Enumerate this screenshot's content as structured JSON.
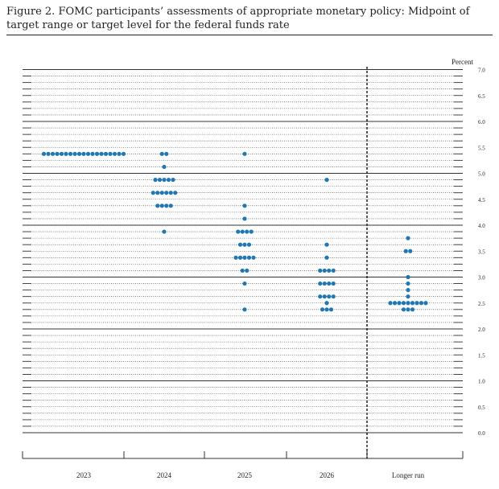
{
  "figure": {
    "title": "Figure 2.  FOMC participants’ assessments of appropriate monetary policy: Midpoint of target range or target level for the federal funds rate"
  },
  "colors": {
    "dot": "#1f77b4",
    "grid": "#333333",
    "text": "#222222"
  },
  "chart_data": {
    "type": "scatter",
    "subtype": "dot-plot",
    "ylabel": "Percent",
    "ylim": [
      0,
      7
    ],
    "yticks": [
      "0.0",
      "0.5",
      "1.0",
      "1.5",
      "2.0",
      "2.5",
      "3.0",
      "3.5",
      "4.0",
      "4.5",
      "5.0",
      "5.5",
      "6.0",
      "6.5",
      "7.0"
    ],
    "gridlines": "solid at whole percents, dotted at eighth-percent steps",
    "categories": [
      "2023",
      "2024",
      "2025",
      "2026",
      "Longer run"
    ],
    "separator_before": "Longer run",
    "columns": [
      {
        "category": "2023",
        "dots": [
          {
            "value": 5.375,
            "count": 19
          }
        ]
      },
      {
        "category": "2024",
        "dots": [
          {
            "value": 5.375,
            "count": 2
          },
          {
            "value": 5.125,
            "count": 1
          },
          {
            "value": 4.875,
            "count": 5
          },
          {
            "value": 4.625,
            "count": 6
          },
          {
            "value": 4.375,
            "count": 4
          },
          {
            "value": 3.875,
            "count": 1
          }
        ]
      },
      {
        "category": "2025",
        "dots": [
          {
            "value": 5.375,
            "count": 1
          },
          {
            "value": 4.375,
            "count": 1
          },
          {
            "value": 4.125,
            "count": 1
          },
          {
            "value": 3.875,
            "count": 4
          },
          {
            "value": 3.625,
            "count": 3
          },
          {
            "value": 3.375,
            "count": 5
          },
          {
            "value": 3.125,
            "count": 2
          },
          {
            "value": 2.875,
            "count": 1
          },
          {
            "value": 2.375,
            "count": 1
          }
        ]
      },
      {
        "category": "2026",
        "dots": [
          {
            "value": 4.875,
            "count": 1
          },
          {
            "value": 3.625,
            "count": 1
          },
          {
            "value": 3.375,
            "count": 1
          },
          {
            "value": 3.125,
            "count": 4
          },
          {
            "value": 2.875,
            "count": 4
          },
          {
            "value": 2.625,
            "count": 4
          },
          {
            "value": 2.5,
            "count": 1
          },
          {
            "value": 2.375,
            "count": 3
          }
        ]
      },
      {
        "category": "Longer run",
        "dots": [
          {
            "value": 3.75,
            "count": 1
          },
          {
            "value": 3.5,
            "count": 2
          },
          {
            "value": 3.0,
            "count": 1
          },
          {
            "value": 2.875,
            "count": 1
          },
          {
            "value": 2.75,
            "count": 1
          },
          {
            "value": 2.625,
            "count": 1
          },
          {
            "value": 2.5,
            "count": 9
          },
          {
            "value": 2.375,
            "count": 3
          }
        ]
      }
    ]
  }
}
